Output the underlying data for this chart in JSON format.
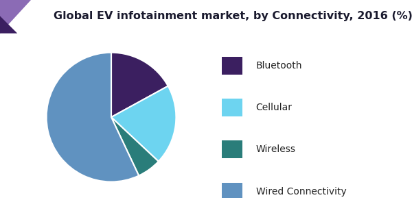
{
  "title": "Global EV infotainment market, by Connectivity, 2016 (%)",
  "title_fontsize": 11.5,
  "title_color": "#1a1a2e",
  "slices": [
    {
      "label": "Bluetooth",
      "value": 17,
      "color": "#3b1f60"
    },
    {
      "label": "Cellular",
      "value": 20,
      "color": "#6dd4f0"
    },
    {
      "label": "Wireless",
      "value": 6,
      "color": "#2a7d7a"
    },
    {
      "label": "Wired Connectivity",
      "value": 57,
      "color": "#6092c0"
    }
  ],
  "legend_fontsize": 10,
  "background_color": "#ffffff",
  "header_line_color": "#7b2d8b",
  "accent_light": "#8b6bb5",
  "accent_dark": "#3b1f60",
  "startangle": 90
}
